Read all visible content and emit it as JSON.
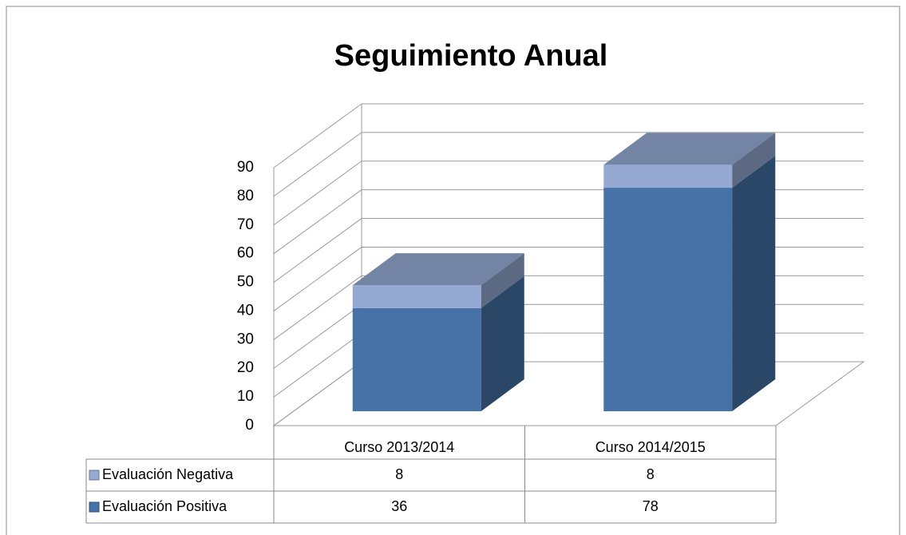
{
  "chart_data": {
    "type": "bar3d_stacked",
    "title": "Seguimiento Anual",
    "categories": [
      "Curso 2013/2014",
      "Curso 2014/2015"
    ],
    "series": [
      {
        "name": "Evaluación Positiva",
        "color": "#4672a8",
        "values": [
          36,
          78
        ]
      },
      {
        "name": "Evaluación Negativa",
        "color": "#95a9d3",
        "values": [
          8,
          8
        ]
      }
    ],
    "ylim": [
      0,
      90
    ],
    "yticks": [
      0,
      10,
      20,
      30,
      40,
      50,
      60,
      70,
      80,
      90
    ],
    "grid": true,
    "data_table": true
  }
}
